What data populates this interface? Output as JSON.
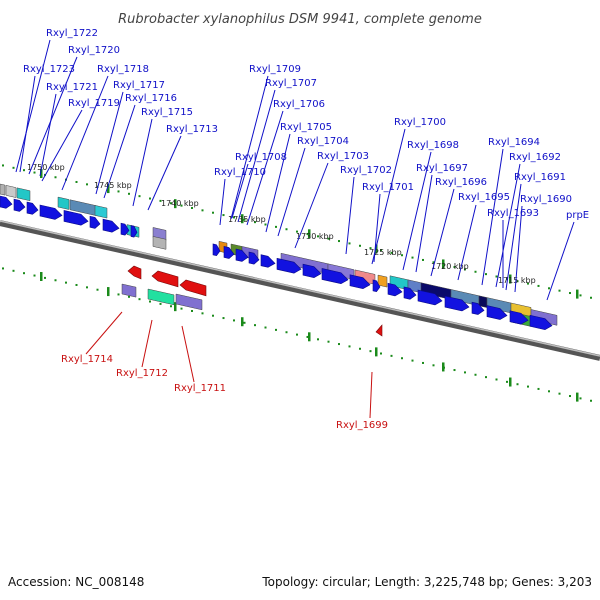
{
  "title": "Rubrobacter xylanophilus DSM 9941, complete genome",
  "footer": {
    "accession": "Accession: NC_008148",
    "topology": "Topology: circular; Length: 3,225,748 bp; Genes: 3,203"
  },
  "colors": {
    "forward_label": "#1010c8",
    "reverse_label": "#c81010",
    "forward_arrow": "#1212e0",
    "reverse_arrow": "#e01010",
    "backbone": "#555555",
    "scale_ticks": "#1a8a1a"
  },
  "scale_labels": [
    "1750 kbp",
    "1745 kbp",
    "1740 kbp",
    "1735 kbp",
    "1730 kbp",
    "1725 kbp",
    "1720 kbp",
    "1715 kbp"
  ],
  "forward_labels": [
    "Rxyl_1722",
    "Rxyl_1720",
    "Rxyl_1723",
    "Rxyl_1721",
    "Rxyl_1718",
    "Rxyl_1719",
    "Rxyl_1717",
    "Rxyl_1716",
    "Rxyl_1715",
    "Rxyl_1713",
    "Rxyl_1709",
    "Rxyl_1707",
    "Rxyl_1706",
    "Rxyl_1705",
    "Rxyl_1704",
    "Rxyl_1708",
    "Rxyl_1703",
    "Rxyl_1710",
    "Rxyl_1702",
    "Rxyl_1701",
    "Rxyl_1700",
    "Rxyl_1698",
    "Rxyl_1697",
    "Rxyl_1696",
    "Rxyl_1695",
    "Rxyl_1694",
    "Rxyl_1692",
    "Rxyl_1691",
    "Rxyl_1690",
    "Rxyl_1693",
    "prpE"
  ],
  "reverse_labels": [
    "Rxyl_1714",
    "Rxyl_1712",
    "Rxyl_1711",
    "Rxyl_1699"
  ]
}
